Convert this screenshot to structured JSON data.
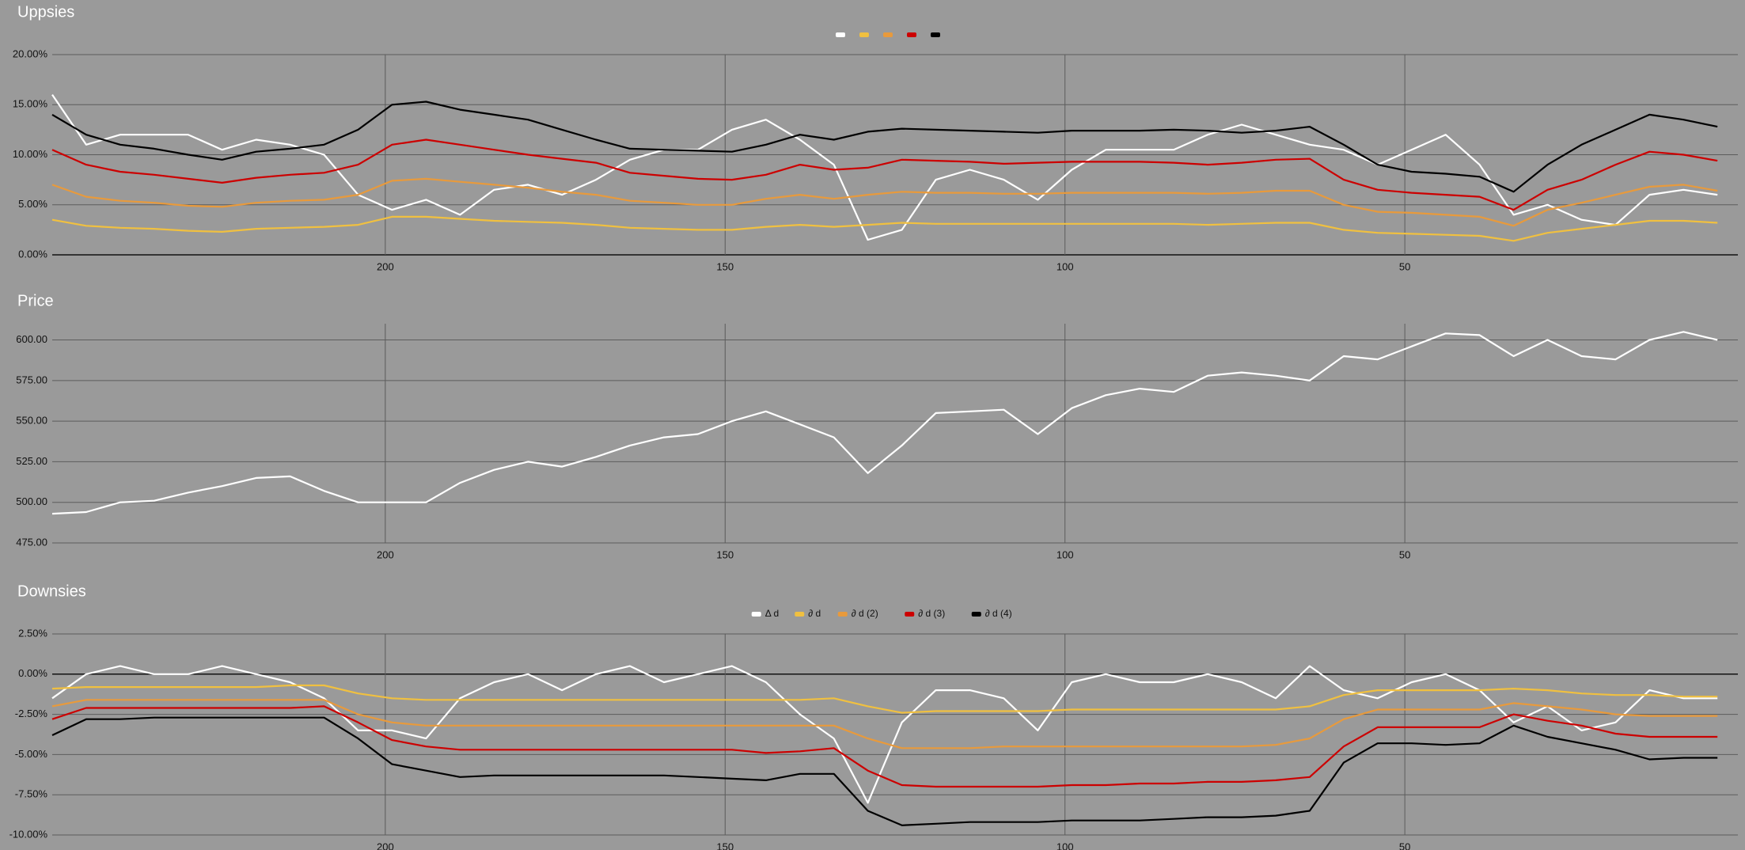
{
  "chart_data": [
    {
      "type": "line",
      "title": "Uppsies",
      "legend": "top",
      "x": [
        249,
        244,
        239,
        234,
        229,
        224,
        219,
        214,
        209,
        204,
        199,
        194,
        189,
        184,
        179,
        174,
        169,
        164,
        159,
        154,
        149,
        144,
        139,
        134,
        129,
        124,
        119,
        114,
        109,
        104,
        99,
        94,
        89,
        84,
        79,
        74,
        69,
        64,
        59,
        54,
        49,
        44,
        39,
        34,
        29,
        24,
        19,
        14,
        9,
        4
      ],
      "xlim": [
        249,
        1
      ],
      "xticks": [
        200,
        150,
        100,
        50
      ],
      "ylim": [
        0,
        20
      ],
      "yticks": [
        {
          "value": 0,
          "label": "0.00%"
        },
        {
          "value": 5,
          "label": "5.00%"
        },
        {
          "value": 10,
          "label": "10.00%"
        },
        {
          "value": 15,
          "label": "15.00%"
        },
        {
          "value": 20,
          "label": "20.00%"
        }
      ],
      "grid": true,
      "series": [
        {
          "color": "#ffffff",
          "values": [
            16,
            11,
            12,
            12,
            12,
            10.5,
            11.5,
            11,
            10,
            6,
            4.5,
            5.5,
            4,
            6.5,
            7,
            6,
            7.5,
            9.5,
            10.5,
            10.5,
            12.5,
            13.5,
            11.5,
            9,
            1.5,
            2.5,
            7.5,
            8.5,
            7.5,
            5.5,
            8.5,
            10.5,
            10.5,
            10.5,
            12,
            13,
            12,
            11,
            10.5,
            9,
            10.5,
            12,
            9,
            4,
            5,
            3.5,
            3,
            6,
            6.5,
            6
          ]
        },
        {
          "color": "#f0c040",
          "values": [
            3.5,
            2.9,
            2.7,
            2.6,
            2.4,
            2.3,
            2.6,
            2.7,
            2.8,
            3,
            3.8,
            3.8,
            3.6,
            3.4,
            3.3,
            3.2,
            3,
            2.7,
            2.6,
            2.5,
            2.5,
            2.8,
            3,
            2.8,
            3,
            3.2,
            3.1,
            3.1,
            3.1,
            3.1,
            3.1,
            3.1,
            3.1,
            3.1,
            3,
            3.1,
            3.2,
            3.2,
            2.5,
            2.2,
            2.1,
            2,
            1.9,
            1.4,
            2.2,
            2.6,
            3,
            3.4,
            3.4,
            3.2
          ]
        },
        {
          "color": "#e89a3c",
          "values": [
            7,
            5.8,
            5.4,
            5.2,
            4.9,
            4.8,
            5.2,
            5.4,
            5.5,
            6,
            7.4,
            7.6,
            7.3,
            7,
            6.7,
            6.3,
            6,
            5.4,
            5.2,
            5,
            5,
            5.6,
            6,
            5.6,
            6,
            6.3,
            6.2,
            6.2,
            6.1,
            6.1,
            6.2,
            6.2,
            6.2,
            6.2,
            6.1,
            6.2,
            6.4,
            6.4,
            5,
            4.3,
            4.2,
            4,
            3.8,
            2.9,
            4.5,
            5.2,
            6,
            6.8,
            7,
            6.4
          ]
        },
        {
          "color": "#cc0000",
          "values": [
            10.5,
            9,
            8.3,
            8,
            7.6,
            7.2,
            7.7,
            8,
            8.2,
            9,
            11,
            11.5,
            11,
            10.5,
            10,
            9.6,
            9.2,
            8.2,
            7.9,
            7.6,
            7.5,
            8,
            9,
            8.5,
            8.7,
            9.5,
            9.4,
            9.3,
            9.1,
            9.2,
            9.3,
            9.3,
            9.3,
            9.2,
            9,
            9.2,
            9.5,
            9.6,
            7.5,
            6.5,
            6.2,
            6,
            5.8,
            4.5,
            6.5,
            7.5,
            9,
            10.3,
            10,
            9.4
          ]
        },
        {
          "color": "#000000",
          "values": [
            14,
            12,
            11,
            10.6,
            10,
            9.5,
            10.3,
            10.6,
            11,
            12.5,
            15,
            15.3,
            14.5,
            14,
            13.5,
            12.5,
            11.5,
            10.6,
            10.5,
            10.4,
            10.3,
            11,
            12,
            11.5,
            12.3,
            12.6,
            12.5,
            12.4,
            12.3,
            12.2,
            12.4,
            12.4,
            12.4,
            12.5,
            12.4,
            12.2,
            12.4,
            12.8,
            11,
            9,
            8.3,
            8.1,
            7.8,
            6.3,
            9,
            11,
            12.5,
            14,
            13.5,
            12.8
          ]
        }
      ]
    },
    {
      "type": "line",
      "title": "Price",
      "x": [
        249,
        244,
        239,
        234,
        229,
        224,
        219,
        214,
        209,
        204,
        199,
        194,
        189,
        184,
        179,
        174,
        169,
        164,
        159,
        154,
        149,
        144,
        139,
        134,
        129,
        124,
        119,
        114,
        109,
        104,
        99,
        94,
        89,
        84,
        79,
        74,
        69,
        64,
        59,
        54,
        49,
        44,
        39,
        34,
        29,
        24,
        19,
        14,
        9,
        4
      ],
      "xlim": [
        249,
        1
      ],
      "xticks": [
        200,
        150,
        100,
        50
      ],
      "ylim": [
        475,
        610
      ],
      "yticks": [
        {
          "value": 475,
          "label": "475.00"
        },
        {
          "value": 500,
          "label": "500.00"
        },
        {
          "value": 525,
          "label": "525.00"
        },
        {
          "value": 550,
          "label": "550.00"
        },
        {
          "value": 575,
          "label": "575.00"
        },
        {
          "value": 600,
          "label": "600.00"
        }
      ],
      "grid": true,
      "series": [
        {
          "color": "#ffffff",
          "values": [
            493,
            494,
            500,
            501,
            506,
            510,
            515,
            516,
            507,
            500,
            500,
            500,
            512,
            520,
            525,
            522,
            528,
            535,
            540,
            542,
            550,
            556,
            548,
            540,
            518,
            535,
            555,
            556,
            557,
            542,
            558,
            566,
            570,
            568,
            578,
            580,
            578,
            575,
            590,
            588,
            596,
            604,
            603,
            590,
            600,
            590,
            588,
            600,
            605,
            600
          ]
        }
      ]
    },
    {
      "type": "line",
      "title": "Downsies",
      "legend": "top",
      "x": [
        249,
        244,
        239,
        234,
        229,
        224,
        219,
        214,
        209,
        204,
        199,
        194,
        189,
        184,
        179,
        174,
        169,
        164,
        159,
        154,
        149,
        144,
        139,
        134,
        129,
        124,
        119,
        114,
        109,
        104,
        99,
        94,
        89,
        84,
        79,
        74,
        69,
        64,
        59,
        54,
        49,
        44,
        39,
        34,
        29,
        24,
        19,
        14,
        9,
        4
      ],
      "xlim": [
        249,
        1
      ],
      "xticks": [
        200,
        150,
        100,
        50
      ],
      "ylim": [
        -10,
        2.5
      ],
      "yticks": [
        {
          "value": -10,
          "label": "-10.00%"
        },
        {
          "value": -7.5,
          "label": "-7.50%"
        },
        {
          "value": -5,
          "label": "-5.00%"
        },
        {
          "value": -2.5,
          "label": "-2.50%"
        },
        {
          "value": 0,
          "label": "0.00%"
        },
        {
          "value": 2.5,
          "label": "2.50%"
        }
      ],
      "grid": true,
      "series": [
        {
          "name": "Δ d",
          "color": "#ffffff",
          "values": [
            -1.5,
            0,
            0.5,
            0,
            0,
            0.5,
            0,
            -0.5,
            -1.5,
            -3.5,
            -3.5,
            -4,
            -1.5,
            -0.5,
            0,
            -1,
            0,
            0.5,
            -0.5,
            0,
            0.5,
            -0.5,
            -2.5,
            -4,
            -8,
            -3,
            -1,
            -1,
            -1.5,
            -3.5,
            -0.5,
            0,
            -0.5,
            -0.5,
            0,
            -0.5,
            -1.5,
            0.5,
            -1,
            -1.5,
            -0.5,
            0,
            -1,
            -3,
            -2,
            -3.5,
            -3,
            -1,
            -1.5,
            -1.5
          ]
        },
        {
          "name": "∂ d",
          "color": "#f0c040",
          "values": [
            -0.9,
            -0.8,
            -0.8,
            -0.8,
            -0.8,
            -0.8,
            -0.8,
            -0.7,
            -0.7,
            -1.2,
            -1.5,
            -1.6,
            -1.6,
            -1.6,
            -1.6,
            -1.6,
            -1.6,
            -1.6,
            -1.6,
            -1.6,
            -1.6,
            -1.6,
            -1.6,
            -1.5,
            -2,
            -2.4,
            -2.3,
            -2.3,
            -2.3,
            -2.3,
            -2.2,
            -2.2,
            -2.2,
            -2.2,
            -2.2,
            -2.2,
            -2.2,
            -2,
            -1.3,
            -1,
            -1,
            -1,
            -1,
            -0.9,
            -1,
            -1.2,
            -1.3,
            -1.3,
            -1.4,
            -1.4
          ]
        },
        {
          "name": "∂ d (2)",
          "color": "#e89a3c",
          "values": [
            -2,
            -1.6,
            -1.6,
            -1.6,
            -1.6,
            -1.6,
            -1.6,
            -1.6,
            -1.6,
            -2.5,
            -3,
            -3.2,
            -3.2,
            -3.2,
            -3.2,
            -3.2,
            -3.2,
            -3.2,
            -3.2,
            -3.2,
            -3.2,
            -3.2,
            -3.2,
            -3.2,
            -4,
            -4.6,
            -4.6,
            -4.6,
            -4.5,
            -4.5,
            -4.5,
            -4.5,
            -4.5,
            -4.5,
            -4.5,
            -4.5,
            -4.4,
            -4,
            -2.8,
            -2.2,
            -2.2,
            -2.2,
            -2.2,
            -1.8,
            -2,
            -2.2,
            -2.5,
            -2.6,
            -2.6,
            -2.6
          ]
        },
        {
          "name": "∂ d (3)",
          "color": "#cc0000",
          "values": [
            -2.8,
            -2.1,
            -2.1,
            -2.1,
            -2.1,
            -2.1,
            -2.1,
            -2.1,
            -2,
            -3,
            -4.1,
            -4.5,
            -4.7,
            -4.7,
            -4.7,
            -4.7,
            -4.7,
            -4.7,
            -4.7,
            -4.7,
            -4.7,
            -4.9,
            -4.8,
            -4.6,
            -6,
            -6.9,
            -7,
            -7,
            -7,
            -7,
            -6.9,
            -6.9,
            -6.8,
            -6.8,
            -6.7,
            -6.7,
            -6.6,
            -6.4,
            -4.5,
            -3.3,
            -3.3,
            -3.3,
            -3.3,
            -2.5,
            -2.9,
            -3.2,
            -3.7,
            -3.9,
            -3.9,
            -3.9
          ]
        },
        {
          "name": "∂ d (4)",
          "color": "#000000",
          "values": [
            -3.8,
            -2.8,
            -2.8,
            -2.7,
            -2.7,
            -2.7,
            -2.7,
            -2.7,
            -2.7,
            -4,
            -5.6,
            -6,
            -6.4,
            -6.3,
            -6.3,
            -6.3,
            -6.3,
            -6.3,
            -6.3,
            -6.4,
            -6.5,
            -6.6,
            -6.2,
            -6.2,
            -8.5,
            -9.4,
            -9.3,
            -9.2,
            -9.2,
            -9.2,
            -9.1,
            -9.1,
            -9.1,
            -9,
            -8.9,
            -8.9,
            -8.8,
            -8.5,
            -5.5,
            -4.3,
            -4.3,
            -4.4,
            -4.3,
            -3.2,
            -3.9,
            -4.3,
            -4.7,
            -5.3,
            -5.2,
            -5.2
          ]
        }
      ]
    }
  ]
}
